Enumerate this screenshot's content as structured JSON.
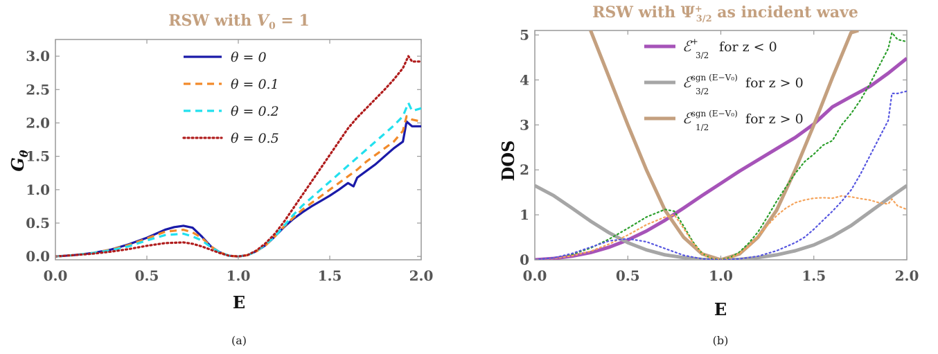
{
  "chart_data": [
    {
      "type": "line",
      "caption": "(a)",
      "title": "RSW with V₀ = 1",
      "title_parts": [
        "RSW with ",
        "V",
        "0",
        " = 1"
      ],
      "xlabel": "E",
      "ylabel": "G",
      "ylabel_sub": "θ",
      "xlim": [
        0.0,
        2.0
      ],
      "ylim": [
        -0.05,
        3.25
      ],
      "xticks": [
        0.0,
        0.5,
        1.0,
        1.5,
        2.0
      ],
      "xtick_labels": [
        "0.0",
        "0.5",
        "1.0",
        "1.5",
        "2.0"
      ],
      "yticks": [
        0.0,
        0.5,
        1.0,
        1.5,
        2.0,
        2.5,
        3.0
      ],
      "ytick_labels": [
        "0.0",
        "0.5",
        "1.0",
        "1.5",
        "2.0",
        "2.5",
        "3.0"
      ],
      "grid": false,
      "legend_position": "top-center",
      "series": [
        {
          "name": "θ = 0",
          "color": "#1a1aa8",
          "dash": "solid",
          "x": [
            0.0,
            0.1,
            0.2,
            0.3,
            0.4,
            0.5,
            0.6,
            0.65,
            0.7,
            0.75,
            0.8,
            0.85,
            0.9,
            0.95,
            1.0,
            1.05,
            1.1,
            1.15,
            1.2,
            1.25,
            1.3,
            1.35,
            1.4,
            1.45,
            1.5,
            1.55,
            1.6,
            1.63,
            1.65,
            1.7,
            1.75,
            1.8,
            1.85,
            1.9,
            1.92,
            1.95,
            2.0
          ],
          "y": [
            0.0,
            0.02,
            0.05,
            0.1,
            0.18,
            0.28,
            0.4,
            0.44,
            0.46,
            0.43,
            0.3,
            0.15,
            0.06,
            0.01,
            0.0,
            0.02,
            0.08,
            0.17,
            0.3,
            0.44,
            0.56,
            0.66,
            0.75,
            0.83,
            0.91,
            1.0,
            1.1,
            1.05,
            1.18,
            1.28,
            1.38,
            1.5,
            1.62,
            1.72,
            2.02,
            1.95,
            1.95
          ]
        },
        {
          "name": "θ = 0.1",
          "color": "#f28a2a",
          "dash": "dashed",
          "x": [
            0.0,
            0.1,
            0.2,
            0.3,
            0.4,
            0.5,
            0.6,
            0.7,
            0.75,
            0.8,
            0.85,
            0.9,
            0.95,
            1.0,
            1.05,
            1.1,
            1.15,
            1.2,
            1.25,
            1.3,
            1.35,
            1.4,
            1.45,
            1.5,
            1.55,
            1.6,
            1.65,
            1.7,
            1.75,
            1.8,
            1.85,
            1.9,
            1.92,
            1.95,
            2.0
          ],
          "y": [
            0.0,
            0.02,
            0.05,
            0.1,
            0.17,
            0.27,
            0.37,
            0.4,
            0.36,
            0.28,
            0.15,
            0.06,
            0.01,
            0.0,
            0.02,
            0.08,
            0.17,
            0.3,
            0.45,
            0.58,
            0.7,
            0.8,
            0.9,
            1.0,
            1.1,
            1.2,
            1.3,
            1.42,
            1.52,
            1.62,
            1.72,
            1.88,
            2.1,
            2.05,
            2.02
          ]
        },
        {
          "name": "θ = 0.2",
          "color": "#22e0ee",
          "dash": "dashed",
          "x": [
            0.0,
            0.1,
            0.2,
            0.3,
            0.4,
            0.5,
            0.6,
            0.7,
            0.75,
            0.8,
            0.85,
            0.9,
            0.95,
            1.0,
            1.05,
            1.1,
            1.15,
            1.2,
            1.25,
            1.3,
            1.35,
            1.4,
            1.45,
            1.5,
            1.55,
            1.6,
            1.65,
            1.7,
            1.75,
            1.8,
            1.85,
            1.9,
            1.93,
            1.95,
            2.0
          ],
          "y": [
            0.0,
            0.02,
            0.05,
            0.09,
            0.15,
            0.24,
            0.32,
            0.34,
            0.3,
            0.24,
            0.14,
            0.06,
            0.01,
            0.0,
            0.02,
            0.08,
            0.18,
            0.3,
            0.46,
            0.62,
            0.76,
            0.88,
            1.0,
            1.12,
            1.24,
            1.36,
            1.48,
            1.6,
            1.72,
            1.84,
            1.96,
            2.1,
            2.3,
            2.18,
            2.22
          ]
        },
        {
          "name": "θ = 0.5",
          "color": "#b01c1c",
          "dash": "dotted",
          "x": [
            0.0,
            0.1,
            0.2,
            0.3,
            0.4,
            0.5,
            0.6,
            0.7,
            0.75,
            0.8,
            0.85,
            0.9,
            0.95,
            1.0,
            1.05,
            1.1,
            1.15,
            1.2,
            1.25,
            1.3,
            1.35,
            1.4,
            1.45,
            1.5,
            1.55,
            1.6,
            1.65,
            1.7,
            1.75,
            1.8,
            1.85,
            1.9,
            1.93,
            1.95,
            2.0
          ],
          "y": [
            0.0,
            0.02,
            0.04,
            0.07,
            0.11,
            0.16,
            0.2,
            0.21,
            0.19,
            0.15,
            0.1,
            0.05,
            0.01,
            0.0,
            0.02,
            0.09,
            0.2,
            0.34,
            0.52,
            0.72,
            0.92,
            1.12,
            1.32,
            1.52,
            1.72,
            1.92,
            2.08,
            2.22,
            2.36,
            2.5,
            2.65,
            2.82,
            3.0,
            2.92,
            2.92
          ]
        }
      ]
    },
    {
      "type": "line",
      "caption": "(b)",
      "title": "RSW with Ψ⁺₃₂ as incident wave",
      "title_parts": [
        "RSW with ",
        "Ψ",
        "+",
        "3/2",
        " as incident wave"
      ],
      "xlabel": "E",
      "ylabel": "DOS",
      "xlim": [
        0.0,
        2.0
      ],
      "ylim": [
        0.0,
        5.1
      ],
      "xticks": [
        0.0,
        0.5,
        1.0,
        1.5,
        2.0
      ],
      "xtick_labels": [
        "0.0",
        "0.5",
        "1.0",
        "1.5",
        "2.0"
      ],
      "yticks": [
        0,
        1,
        2,
        3,
        4,
        5
      ],
      "ytick_labels": [
        "0",
        "1",
        "2",
        "3",
        "4",
        "5"
      ],
      "grid": false,
      "legend_position": "top-center",
      "legend": [
        {
          "color": "#a653b8",
          "symbol": "ℰ",
          "sup": "+",
          "sub": "3/2",
          "text": " for z < 0"
        },
        {
          "color": "#a6a6a6",
          "symbol": "ℰ",
          "sup": "sgn (E−V₀)",
          "sub": "3/2",
          "text": " for z > 0"
        },
        {
          "color": "#c4a07f",
          "symbol": "ℰ",
          "sup": "sgn (E−V₀)",
          "sub": "1/2",
          "text": " for z > 0"
        }
      ],
      "series": [
        {
          "name": "ℰ⁺₃₂ for z < 0",
          "color": "#a653b8",
          "dash": "solid",
          "width": 5,
          "x": [
            0.0,
            0.1,
            0.2,
            0.3,
            0.4,
            0.5,
            0.6,
            0.7,
            0.8,
            0.9,
            1.0,
            1.1,
            1.2,
            1.3,
            1.4,
            1.5,
            1.6,
            1.7,
            1.8,
            1.9,
            2.0
          ],
          "y": [
            0.0,
            0.03,
            0.08,
            0.16,
            0.28,
            0.44,
            0.64,
            0.88,
            1.15,
            1.43,
            1.7,
            1.97,
            2.22,
            2.47,
            2.72,
            3.02,
            3.4,
            3.63,
            3.85,
            4.15,
            4.48
          ]
        },
        {
          "name": "ℰ 3/2 for z > 0",
          "color": "#a6a6a6",
          "dash": "solid",
          "width": 5,
          "x": [
            0.0,
            0.1,
            0.2,
            0.3,
            0.4,
            0.5,
            0.6,
            0.7,
            0.8,
            0.9,
            1.0,
            1.1,
            1.2,
            1.3,
            1.4,
            1.5,
            1.6,
            1.7,
            1.8,
            1.9,
            2.0
          ],
          "y": [
            1.65,
            1.43,
            1.15,
            0.86,
            0.6,
            0.38,
            0.22,
            0.11,
            0.05,
            0.01,
            0.0,
            0.01,
            0.05,
            0.11,
            0.2,
            0.33,
            0.52,
            0.76,
            1.06,
            1.36,
            1.65
          ]
        },
        {
          "name": "ℰ 1/2 for z > 0",
          "color": "#c4a07f",
          "dash": "solid",
          "width": 5,
          "x": [
            0.3,
            0.4,
            0.5,
            0.6,
            0.7,
            0.8,
            0.9,
            1.0,
            1.1,
            1.2,
            1.3,
            1.4,
            1.5,
            1.6,
            1.7,
            1.74
          ],
          "y": [
            5.1,
            4.05,
            3.0,
            2.0,
            1.1,
            0.5,
            0.13,
            0.0,
            0.13,
            0.5,
            1.1,
            2.0,
            3.0,
            4.05,
            5.05,
            5.1
          ]
        },
        {
          "name": "",
          "color": "#2a9e2a",
          "dash": "dotted",
          "width": 2.2,
          "x": [
            0.0,
            0.1,
            0.2,
            0.3,
            0.4,
            0.5,
            0.6,
            0.7,
            0.75,
            0.8,
            0.85,
            0.9,
            0.95,
            1.0,
            1.05,
            1.1,
            1.15,
            1.2,
            1.25,
            1.3,
            1.35,
            1.4,
            1.45,
            1.5,
            1.55,
            1.6,
            1.65,
            1.7,
            1.75,
            1.8,
            1.85,
            1.9,
            1.92,
            1.95,
            2.0
          ],
          "y": [
            0.0,
            0.04,
            0.12,
            0.26,
            0.46,
            0.7,
            0.95,
            1.12,
            1.08,
            0.75,
            0.4,
            0.14,
            0.03,
            0.0,
            0.05,
            0.17,
            0.37,
            0.62,
            0.95,
            1.3,
            1.62,
            1.92,
            2.18,
            2.35,
            2.55,
            2.65,
            3.0,
            3.25,
            3.55,
            3.9,
            4.3,
            4.7,
            5.05,
            4.9,
            4.85
          ]
        },
        {
          "name": "",
          "color": "#f5a35a",
          "dash": "dotted",
          "width": 2.2,
          "x": [
            0.0,
            0.1,
            0.2,
            0.3,
            0.4,
            0.5,
            0.6,
            0.7,
            0.75,
            0.8,
            0.85,
            0.9,
            0.95,
            1.0,
            1.05,
            1.1,
            1.15,
            1.2,
            1.25,
            1.3,
            1.35,
            1.4,
            1.45,
            1.5,
            1.55,
            1.6,
            1.65,
            1.7,
            1.75,
            1.8,
            1.85,
            1.9,
            1.92,
            1.95,
            2.0
          ],
          "y": [
            0.0,
            0.03,
            0.09,
            0.19,
            0.35,
            0.55,
            0.78,
            0.95,
            1.0,
            0.7,
            0.38,
            0.14,
            0.03,
            0.0,
            0.04,
            0.14,
            0.3,
            0.52,
            0.76,
            0.98,
            1.15,
            1.27,
            1.33,
            1.37,
            1.38,
            1.37,
            1.42,
            1.4,
            1.36,
            1.33,
            1.27,
            1.24,
            1.35,
            1.2,
            1.12
          ]
        },
        {
          "name": "",
          "color": "#5555e0",
          "dash": "dotted",
          "width": 2.2,
          "x": [
            0.0,
            0.1,
            0.2,
            0.3,
            0.4,
            0.5,
            0.6,
            0.7,
            0.8,
            0.9,
            1.0,
            1.1,
            1.2,
            1.3,
            1.4,
            1.45,
            1.5,
            1.55,
            1.6,
            1.65,
            1.7,
            1.75,
            1.8,
            1.85,
            1.9,
            1.92,
            1.95,
            2.0
          ],
          "y": [
            0.0,
            0.04,
            0.14,
            0.28,
            0.42,
            0.47,
            0.4,
            0.25,
            0.1,
            0.02,
            0.0,
            0.02,
            0.08,
            0.2,
            0.38,
            0.5,
            0.68,
            0.88,
            1.08,
            1.3,
            1.55,
            1.9,
            2.3,
            2.7,
            3.1,
            3.7,
            3.7,
            3.75
          ]
        }
      ]
    }
  ]
}
